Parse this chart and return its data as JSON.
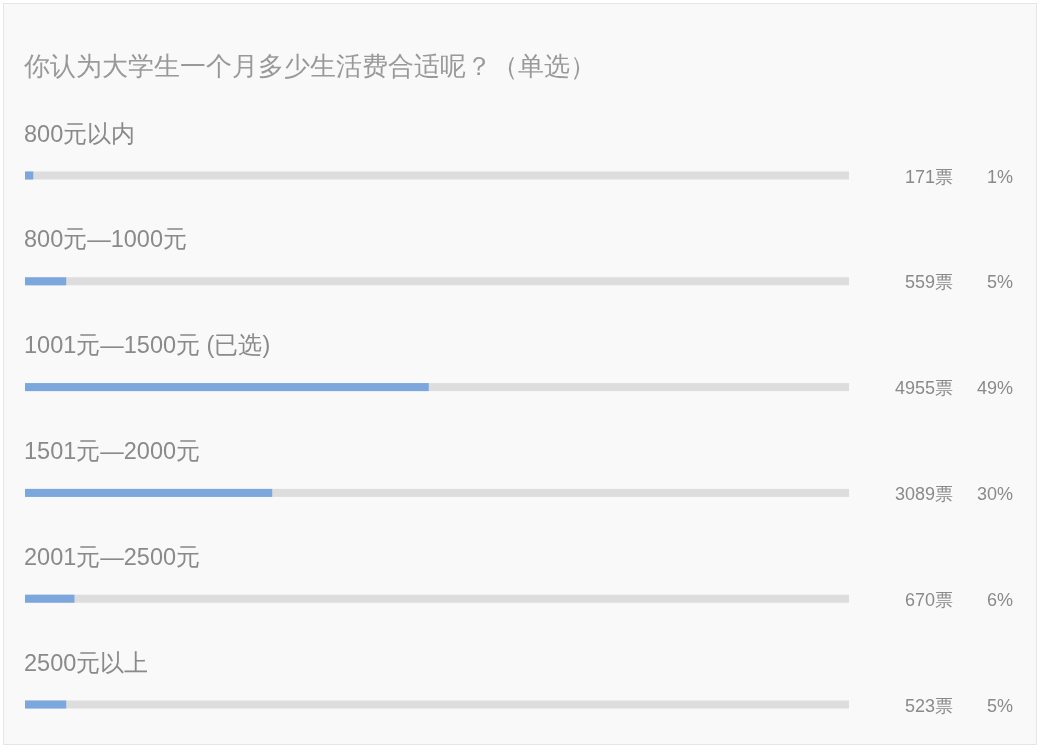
{
  "chart_data": {
    "type": "bar",
    "orientation": "horizontal",
    "title": "你认为大学生一个月多少生活费合适呢？（单选）",
    "categories": [
      "800元以内",
      "800元—1000元",
      "1001元—1500元 (已选)",
      "1501元—2000元",
      "2001元—2500元",
      "2500元以上"
    ],
    "values": [
      1,
      5,
      49,
      30,
      6,
      5
    ],
    "value_labels": [
      "1%",
      "5%",
      "49%",
      "30%",
      "6%",
      "5%"
    ],
    "color": "#7ba7dd",
    "xlim": [
      0,
      100
    ],
    "tick_labels": "y",
    "annotations": [
      "171票",
      "559票",
      "4955票",
      "3089票",
      "670票",
      "523票"
    ]
  }
}
